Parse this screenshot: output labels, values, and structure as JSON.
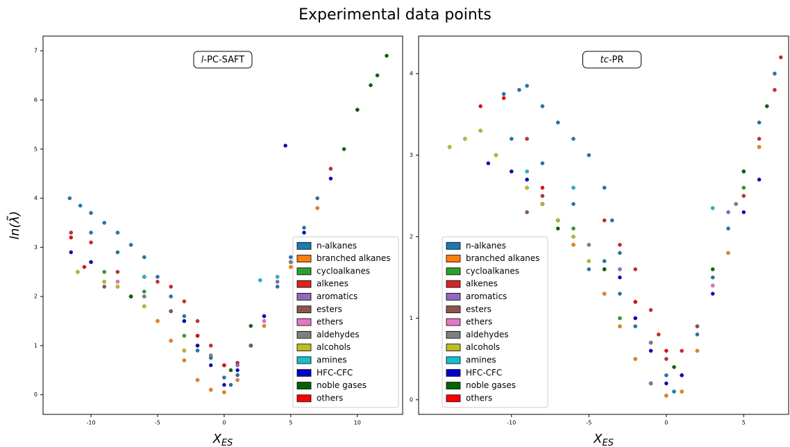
{
  "title": "Experimental data points",
  "chart_data": [
    {
      "type": "scatter",
      "annotation": [
        "l",
        "-PC-SAFT"
      ],
      "xlabel": [
        "X",
        "ES"
      ],
      "ylabel": "ln(λ̃)",
      "xlim": [
        -13.6,
        13.4
      ],
      "ylim": [
        -0.4,
        7.3
      ],
      "xticks": [
        -10,
        -5,
        0,
        5,
        10
      ],
      "yticks": [
        0,
        1,
        2,
        3,
        4,
        5,
        6,
        7
      ],
      "legend": "lower right",
      "series": [
        {
          "name": "n-alkanes",
          "color": "#1f77b4",
          "x": [
            -11.6,
            -10.8,
            -10,
            -9,
            -8,
            -7,
            -6,
            -5,
            -4,
            -3,
            -2,
            -1,
            0,
            0.5,
            1,
            2,
            3,
            4,
            5,
            6,
            7,
            -10,
            -8,
            -6,
            -4,
            -2
          ],
          "y": [
            4.0,
            3.85,
            3.7,
            3.5,
            3.3,
            3.05,
            2.8,
            2.4,
            2.0,
            1.6,
            1.2,
            0.75,
            0.35,
            0.2,
            0.4,
            1.0,
            1.6,
            2.2,
            2.8,
            3.4,
            4.0,
            3.3,
            2.9,
            2.4,
            1.7,
            0.9
          ]
        },
        {
          "name": "branched alkanes",
          "color": "#ff7f0e",
          "x": [
            -7,
            -5,
            -4,
            -3,
            -2,
            -1,
            0,
            1,
            3,
            5,
            7
          ],
          "y": [
            2.0,
            1.5,
            1.1,
            0.7,
            0.3,
            0.1,
            0.05,
            0.3,
            1.4,
            2.6,
            3.8
          ]
        },
        {
          "name": "cycloalkanes",
          "color": "#2ca02c",
          "x": [
            -9,
            -6,
            -3,
            2,
            5
          ],
          "y": [
            2.5,
            2.1,
            1.2,
            1.0,
            2.7
          ]
        },
        {
          "name": "alkenes",
          "color": "#d62728",
          "x": [
            -11.5,
            -10,
            -8,
            -4,
            -3,
            -2,
            -1,
            0,
            1,
            -5,
            8,
            10
          ],
          "y": [
            3.3,
            3.1,
            2.5,
            2.2,
            1.9,
            1.5,
            1.0,
            0.6,
            0.65,
            2.3,
            4.6,
            5.8
          ]
        },
        {
          "name": "aromatics",
          "color": "#9467bd",
          "x": [
            -3,
            1,
            4
          ],
          "y": [
            1.5,
            0.6,
            2.3
          ]
        },
        {
          "name": "esters",
          "color": "#8c564b",
          "x": [
            -9,
            -4,
            2
          ],
          "y": [
            2.2,
            1.7,
            1.0
          ]
        },
        {
          "name": "ethers",
          "color": "#e377c2",
          "x": [
            -8,
            -2,
            3
          ],
          "y": [
            2.3,
            1.0,
            1.5
          ]
        },
        {
          "name": "aldehydes",
          "color": "#7f7f7f",
          "x": [
            -6,
            -1,
            5
          ],
          "y": [
            2.0,
            0.8,
            2.7
          ]
        },
        {
          "name": "alcohols",
          "color": "#bcbd22",
          "x": [
            -11,
            -10,
            -9,
            -8,
            -7,
            -6,
            -3
          ],
          "y": [
            2.5,
            2.7,
            2.3,
            2.2,
            2.0,
            1.8,
            0.9
          ]
        },
        {
          "name": "amines",
          "color": "#17becf",
          "x": [
            -6,
            2.7,
            4
          ],
          "y": [
            2.4,
            2.33,
            2.4
          ]
        },
        {
          "name": "HFC-CFC",
          "color": "#0000cc",
          "x": [
            -11.5,
            -10,
            -3,
            -2,
            -1,
            0,
            1,
            3,
            4.6,
            6,
            8
          ],
          "y": [
            2.9,
            2.7,
            1.5,
            1.0,
            0.6,
            0.2,
            0.5,
            1.6,
            5.07,
            3.3,
            4.4
          ]
        },
        {
          "name": "noble gases",
          "color": "#006400",
          "x": [
            -7,
            0.5,
            2,
            9,
            10,
            11,
            11.5,
            12.2
          ],
          "y": [
            2.0,
            0.5,
            1.4,
            5.0,
            5.8,
            6.3,
            6.5,
            6.9
          ]
        },
        {
          "name": "others",
          "color": "#ff0000",
          "x": [
            -11.5,
            -10.5,
            -2,
            0
          ],
          "y": [
            3.2,
            2.6,
            1.2,
            0.6
          ]
        }
      ]
    },
    {
      "type": "scatter",
      "annotation": [
        "tc",
        "-PR"
      ],
      "xlabel": [
        "X",
        "ES"
      ],
      "xlim": [
        -16.0,
        7.9
      ],
      "ylim": [
        -0.18,
        4.46
      ],
      "xticks": [
        -10,
        -5,
        0,
        5
      ],
      "yticks": [
        0,
        1,
        2,
        3,
        4
      ],
      "legend": "lower left",
      "series": [
        {
          "name": "n-alkanes",
          "color": "#1f77b4",
          "x": [
            -10.5,
            -9.5,
            -9,
            -8,
            -7,
            -6,
            -5,
            -4,
            -3.5,
            -3,
            -2,
            -1,
            0,
            0.5,
            1,
            2,
            3,
            4,
            5,
            6,
            7,
            -10,
            -8,
            -6,
            -4,
            -2,
            -5,
            -3
          ],
          "y": [
            3.75,
            3.8,
            3.85,
            3.6,
            3.4,
            3.2,
            3.0,
            2.6,
            2.2,
            1.8,
            1.2,
            0.7,
            0.3,
            0.1,
            0.3,
            0.8,
            1.5,
            2.1,
            2.8,
            3.4,
            4.0,
            3.2,
            2.9,
            2.4,
            1.7,
            0.9,
            1.6,
            1.3
          ]
        },
        {
          "name": "branched alkanes",
          "color": "#ff7f0e",
          "x": [
            -6,
            -4,
            -3,
            -2,
            -1,
            0,
            1,
            2,
            4,
            6
          ],
          "y": [
            1.9,
            1.3,
            0.9,
            0.5,
            0.2,
            0.05,
            0.1,
            0.6,
            1.8,
            3.1
          ]
        },
        {
          "name": "cycloalkanes",
          "color": "#2ca02c",
          "x": [
            -9,
            -6,
            -3,
            2,
            5
          ],
          "y": [
            2.7,
            2.1,
            1.0,
            0.9,
            2.6
          ]
        },
        {
          "name": "alkenes",
          "color": "#d62728",
          "x": [
            -8,
            -7,
            -4,
            -3,
            -2,
            -1,
            -0.5,
            0,
            1,
            5,
            6,
            7,
            7.4,
            -9
          ],
          "y": [
            2.5,
            2.2,
            2.2,
            1.9,
            1.6,
            1.1,
            0.8,
            0.5,
            0.6,
            2.5,
            3.2,
            3.8,
            4.2,
            3.2
          ]
        },
        {
          "name": "aromatics",
          "color": "#9467bd",
          "x": [
            -3,
            -1,
            4
          ],
          "y": [
            1.6,
            0.2,
            2.3
          ]
        },
        {
          "name": "esters",
          "color": "#8c564b",
          "x": [
            -9,
            -4,
            2
          ],
          "y": [
            2.3,
            1.6,
            0.9
          ]
        },
        {
          "name": "ethers",
          "color": "#e377c2",
          "x": [
            -8,
            -2,
            3
          ],
          "y": [
            2.4,
            1.0,
            1.4
          ]
        },
        {
          "name": "aldehydes",
          "color": "#7f7f7f",
          "x": [
            -5,
            -1,
            4.5
          ],
          "y": [
            1.9,
            0.7,
            2.4
          ]
        },
        {
          "name": "alcohols",
          "color": "#bcbd22",
          "x": [
            -14,
            -13,
            -12,
            -11,
            -10,
            -9,
            -8,
            -7,
            -6,
            -5
          ],
          "y": [
            3.1,
            3.2,
            3.3,
            3.0,
            2.8,
            2.6,
            2.4,
            2.2,
            2.0,
            1.7
          ]
        },
        {
          "name": "amines",
          "color": "#17becf",
          "x": [
            -9,
            -6,
            3
          ],
          "y": [
            2.8,
            2.6,
            2.35
          ]
        },
        {
          "name": "HFC-CFC",
          "color": "#0000cc",
          "x": [
            -11.5,
            -10,
            -9,
            -3,
            -2,
            -1,
            0,
            1,
            3,
            5,
            6
          ],
          "y": [
            2.9,
            2.8,
            2.7,
            1.5,
            1.0,
            0.6,
            0.2,
            0.3,
            1.3,
            2.3,
            2.7
          ]
        },
        {
          "name": "noble gases",
          "color": "#006400",
          "x": [
            -7,
            -4,
            0.5,
            3,
            5,
            6.5
          ],
          "y": [
            2.1,
            1.6,
            0.4,
            1.6,
            2.8,
            3.6
          ]
        },
        {
          "name": "others",
          "color": "#ff0000",
          "x": [
            -12,
            -10.5,
            -8,
            -2,
            0
          ],
          "y": [
            3.6,
            3.7,
            2.6,
            1.2,
            0.6
          ]
        }
      ]
    }
  ]
}
